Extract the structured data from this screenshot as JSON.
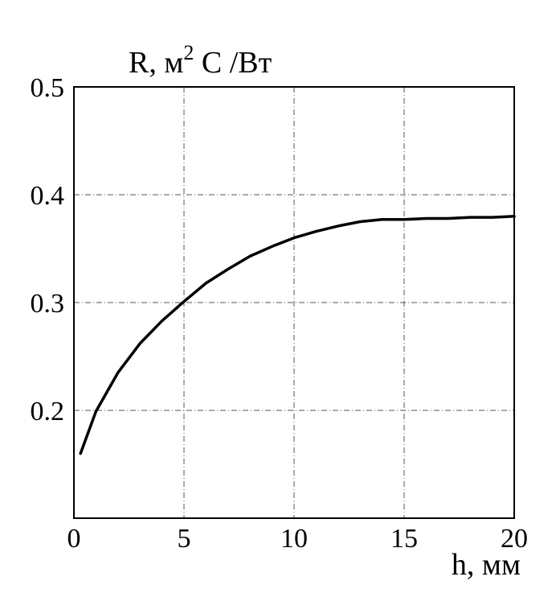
{
  "chart_data": {
    "type": "line",
    "ylabel_main": "R, м",
    "ylabel_sup": "2",
    "ylabel_rest": " C /Вт",
    "xlabel": "h, мм",
    "xlim": [
      0,
      20
    ],
    "ylim": [
      0.1,
      0.5
    ],
    "x_ticks": [
      0,
      5,
      10,
      15,
      20
    ],
    "x_tick_labels": [
      "0",
      "5",
      "10",
      "15",
      "20"
    ],
    "y_ticks": [
      0.2,
      0.3,
      0.4,
      0.5
    ],
    "y_tick_labels": [
      "0.2",
      "0.3",
      "0.4",
      "0.5"
    ],
    "grid": true,
    "series": [
      {
        "x": [
          0.3,
          1,
          2,
          3,
          4,
          5,
          6,
          7,
          8,
          9,
          10,
          11,
          12,
          13,
          14,
          15,
          16,
          17,
          18,
          19,
          20
        ],
        "y": [
          0.16,
          0.199,
          0.235,
          0.262,
          0.283,
          0.301,
          0.318,
          0.331,
          0.343,
          0.352,
          0.36,
          0.366,
          0.371,
          0.375,
          0.377,
          0.377,
          0.378,
          0.378,
          0.379,
          0.379,
          0.38
        ]
      }
    ]
  }
}
